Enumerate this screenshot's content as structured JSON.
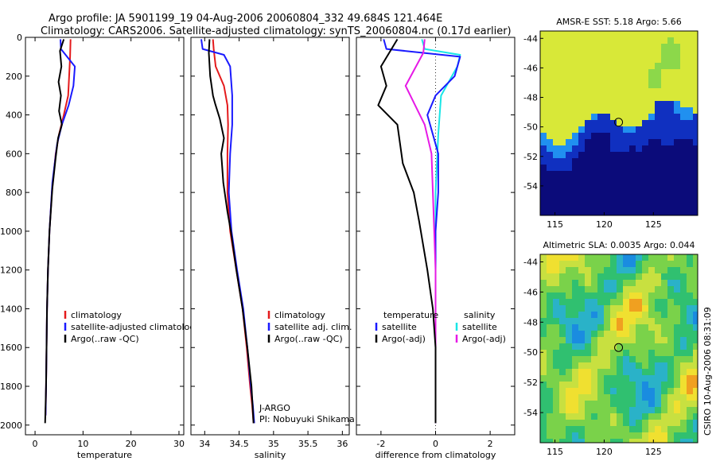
{
  "header": {
    "line1": "Argo profile: JA 5901199_19 04-Aug-2006 20060804_332 49.684S 121.464E",
    "line2": "Climatology: CARS2006. Satellite-adjusted climatology: synTS_20060804.nc (0.17d earlier)"
  },
  "side_label": "CSIRO 10-Aug-2006 08:31:09",
  "colors": {
    "red": "#e41a1c",
    "blue": "#1a1aff",
    "black": "#000000",
    "cyan": "#19e6e6",
    "magenta": "#e619e6"
  },
  "chart_data": [
    {
      "id": "temperature",
      "type": "line",
      "xlabel": "temperature",
      "xlim": [
        -2,
        31
      ],
      "ylim": [
        0,
        2050
      ],
      "x_ticks": [
        0,
        10,
        20,
        30
      ],
      "x_tick_labels": [
        "0",
        "10",
        "20",
        "30"
      ],
      "y_ticks": [
        0,
        200,
        400,
        600,
        800,
        1000,
        1200,
        1400,
        1600,
        1800,
        2000
      ],
      "y_tick_labels": [
        "0",
        "200",
        "400",
        "600",
        "800",
        "1000",
        "1200",
        "1400",
        "1600",
        "1800",
        "2000"
      ],
      "legend": [
        "climatology",
        "satellite-adjusted climatology",
        "Argo(..raw -QC)"
      ],
      "series": [
        {
          "name": "climatology",
          "color": "red",
          "x": [
            7.4,
            7.3,
            7.1,
            6.9,
            6.0,
            5.0,
            4.3,
            3.5,
            3.0,
            2.7,
            2.5,
            2.4,
            2.3,
            2.2
          ],
          "y": [
            10,
            100,
            200,
            300,
            400,
            500,
            600,
            800,
            1000,
            1200,
            1400,
            1600,
            1800,
            1950
          ]
        },
        {
          "name": "satellite-adjusted",
          "color": "blue",
          "x": [
            5.3,
            5.4,
            8.3,
            8.0,
            7.0,
            5.6,
            4.6,
            3.6,
            3.0,
            2.7,
            2.5,
            2.4,
            2.3,
            2.2
          ],
          "y": [
            10,
            60,
            150,
            250,
            350,
            450,
            550,
            750,
            1000,
            1200,
            1400,
            1600,
            1800,
            1950
          ]
        },
        {
          "name": "Argo",
          "color": "black",
          "x": [
            6.0,
            5.2,
            5.5,
            4.9,
            5.4,
            5.0,
            5.6,
            4.8,
            4.3,
            3.6,
            3.0,
            2.7,
            2.5,
            2.4,
            2.3,
            2.2,
            2.1
          ],
          "y": [
            10,
            70,
            150,
            230,
            300,
            380,
            450,
            520,
            620,
            780,
            1000,
            1200,
            1400,
            1600,
            1800,
            1900,
            1990
          ]
        }
      ]
    },
    {
      "id": "salinity",
      "type": "line",
      "xlabel": "salinity",
      "xlim": [
        33.8,
        36.1
      ],
      "ylim": [
        0,
        2050
      ],
      "x_ticks": [
        34,
        34.5,
        35,
        35.5,
        36
      ],
      "x_tick_labels": [
        "34",
        "34.5",
        "35",
        "35.5",
        "36"
      ],
      "legend": [
        "climatology",
        "satellite adj. clim.",
        "Argo(..raw -QC)"
      ],
      "annotation": [
        "J-ARGO",
        "PI: Nobuyuki Shikama"
      ],
      "series": [
        {
          "name": "climatology",
          "color": "red",
          "x": [
            34.12,
            34.13,
            34.16,
            34.28,
            34.33,
            34.34,
            34.33,
            34.33,
            34.37,
            34.46,
            34.55,
            34.61,
            34.66,
            34.69,
            34.71
          ],
          "y": [
            10,
            60,
            150,
            250,
            350,
            450,
            600,
            800,
            1000,
            1200,
            1400,
            1600,
            1800,
            1900,
            1990
          ]
        },
        {
          "name": "satellite-adjusted",
          "color": "blue",
          "x": [
            33.95,
            33.97,
            34.28,
            34.37,
            34.4,
            34.4,
            34.37,
            34.35,
            34.39,
            34.47,
            34.56,
            34.62,
            34.67,
            34.7,
            34.72
          ],
          "y": [
            10,
            60,
            90,
            150,
            300,
            450,
            600,
            800,
            1000,
            1200,
            1400,
            1600,
            1800,
            1900,
            1990
          ]
        },
        {
          "name": "Argo",
          "color": "black",
          "x": [
            34.07,
            34.06,
            34.08,
            34.12,
            34.15,
            34.22,
            34.28,
            34.24,
            34.27,
            34.33,
            34.38,
            34.46,
            34.55,
            34.62,
            34.68,
            34.71
          ],
          "y": [
            10,
            80,
            200,
            300,
            340,
            420,
            520,
            600,
            750,
            900,
            1000,
            1200,
            1400,
            1600,
            1800,
            1990
          ]
        }
      ]
    },
    {
      "id": "difference",
      "type": "line",
      "xlabel": "difference from climatology",
      "xlim": [
        -2.9,
        2.9
      ],
      "ylim": [
        0,
        2050
      ],
      "x_ticks": [
        -2,
        0,
        2
      ],
      "x_tick_labels": [
        "-2",
        "0",
        "2"
      ],
      "legend_left": [
        "temperature",
        "satellite",
        "Argo(-adj)"
      ],
      "legend_right": [
        "salinity",
        "satellite",
        "Argo(-adj)"
      ],
      "series": [
        {
          "name": "temperature satellite",
          "color": "blue",
          "x": [
            -1.9,
            -1.8,
            0.9,
            0.7,
            0.0,
            -0.3,
            0.1,
            0.1,
            0.0,
            0.0,
            0.0,
            0.0,
            0.0
          ],
          "y": [
            10,
            60,
            100,
            200,
            300,
            400,
            600,
            800,
            1000,
            1200,
            1400,
            1600,
            1990
          ]
        },
        {
          "name": "temperature Argo",
          "color": "black",
          "x": [
            -1.4,
            -2.0,
            -1.8,
            -2.1,
            -1.4,
            -1.3,
            -1.2,
            -0.8,
            -0.6,
            -0.3,
            -0.1,
            0.0,
            0.0
          ],
          "y": [
            10,
            150,
            250,
            350,
            450,
            550,
            650,
            800,
            950,
            1200,
            1400,
            1600,
            1990
          ]
        },
        {
          "name": "salinity satellite",
          "color": "cyan",
          "x": [
            -0.5,
            -0.4,
            0.9,
            0.8,
            0.2,
            0.1,
            0.0,
            0.0,
            0.0,
            0.0
          ],
          "y": [
            10,
            60,
            90,
            150,
            300,
            500,
            800,
            1200,
            1600,
            1990
          ]
        },
        {
          "name": "salinity Argo",
          "color": "magenta",
          "x": [
            -0.4,
            -0.45,
            -1.1,
            -0.75,
            -0.4,
            -0.15,
            -0.1,
            0.0,
            0.0
          ],
          "y": [
            10,
            80,
            250,
            350,
            450,
            600,
            800,
            1200,
            1990
          ]
        }
      ]
    },
    {
      "id": "sst_map",
      "type": "heatmap",
      "title": "AMSR-E SST: 5.18 Argo: 5.66",
      "x_tick_labels": [
        "115",
        "120",
        "125"
      ],
      "x_ticks": [
        115,
        120,
        125
      ],
      "y_tick_labels": [
        "-44",
        "-46",
        "-48",
        "-50",
        "-52",
        "-54"
      ],
      "y_ticks": [
        -44,
        -46,
        -48,
        -50,
        -52,
        -54
      ],
      "lon_range": [
        113.5,
        129.5
      ],
      "lat_range": [
        -56,
        -43.5
      ],
      "marker": [
        121.464,
        -49.684
      ]
    },
    {
      "id": "sla_map",
      "type": "heatmap",
      "title": "Altimetric SLA: 0.0035 Argo: 0.044",
      "x_tick_labels": [
        "115",
        "120",
        "125"
      ],
      "x_ticks": [
        115,
        120,
        125
      ],
      "y_tick_labels": [
        "-44",
        "-46",
        "-48",
        "-50",
        "-52",
        "-54"
      ],
      "y_ticks": [
        -44,
        -46,
        -48,
        -50,
        -52,
        -54
      ],
      "lon_range": [
        113.5,
        129.5
      ],
      "lat_range": [
        -56,
        -43.5
      ],
      "marker": [
        121.464,
        -49.684
      ]
    }
  ]
}
